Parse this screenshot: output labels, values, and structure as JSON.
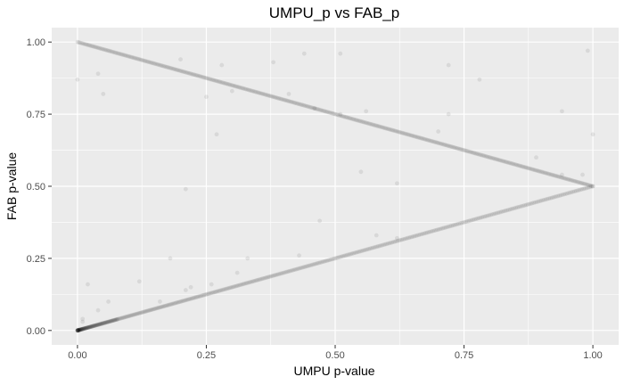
{
  "chart_data": {
    "type": "scatter",
    "title": "UMPU_p vs FAB_p",
    "xlabel": "UMPU p-value",
    "ylabel": "FAB p-value",
    "xlim": [
      -0.05,
      1.05
    ],
    "ylim": [
      -0.05,
      1.05
    ],
    "x_ticks": [
      0.0,
      0.25,
      0.5,
      0.75,
      1.0
    ],
    "x_tick_labels": [
      "0.00",
      "0.25",
      "0.50",
      "0.75",
      "1.00"
    ],
    "y_ticks": [
      0.0,
      0.25,
      0.5,
      0.75,
      1.0
    ],
    "y_tick_labels": [
      "0.00",
      "0.25",
      "0.50",
      "0.75",
      "1.00"
    ],
    "grid": true,
    "legend": "none",
    "colors": {
      "panel": "#ebebeb",
      "grid_major": "#ffffff",
      "point": "#000000"
    },
    "point_alpha": 0.08,
    "trend_lines": [
      {
        "name": "lower-branch",
        "from": [
          0,
          0
        ],
        "to": [
          1,
          0.5
        ]
      },
      {
        "name": "upper-branch",
        "from": [
          0,
          1
        ],
        "to": [
          1,
          0.5
        ]
      }
    ],
    "scattered_points": [
      [
        0.0,
        0.87
      ],
      [
        0.04,
        0.89
      ],
      [
        0.05,
        0.82
      ],
      [
        0.2,
        0.94
      ],
      [
        0.28,
        0.92
      ],
      [
        0.38,
        0.93
      ],
      [
        0.44,
        0.96
      ],
      [
        0.51,
        0.96
      ],
      [
        0.25,
        0.81
      ],
      [
        0.3,
        0.83
      ],
      [
        0.41,
        0.82
      ],
      [
        0.27,
        0.68
      ],
      [
        0.21,
        0.49
      ],
      [
        0.47,
        0.38
      ],
      [
        0.55,
        0.55
      ],
      [
        0.62,
        0.51
      ],
      [
        0.56,
        0.76
      ],
      [
        0.72,
        0.75
      ],
      [
        0.72,
        0.92
      ],
      [
        0.78,
        0.87
      ],
      [
        0.7,
        0.69
      ],
      [
        0.89,
        0.6
      ],
      [
        0.94,
        0.76
      ],
      [
        0.94,
        0.54
      ],
      [
        0.98,
        0.54
      ],
      [
        0.99,
        0.97
      ],
      [
        1.0,
        0.68
      ],
      [
        0.62,
        0.32
      ],
      [
        0.33,
        0.25
      ],
      [
        0.22,
        0.15
      ],
      [
        0.21,
        0.14
      ],
      [
        0.12,
        0.17
      ],
      [
        0.02,
        0.16
      ],
      [
        0.06,
        0.1
      ],
      [
        0.04,
        0.07
      ],
      [
        0.01,
        0.04
      ],
      [
        0.01,
        0.03
      ],
      [
        0.26,
        0.16
      ],
      [
        0.18,
        0.25
      ],
      [
        0.43,
        0.26
      ],
      [
        0.31,
        0.2
      ],
      [
        0.16,
        0.1
      ],
      [
        0.51,
        0.75
      ],
      [
        0.46,
        0.77
      ],
      [
        0.58,
        0.33
      ]
    ]
  }
}
